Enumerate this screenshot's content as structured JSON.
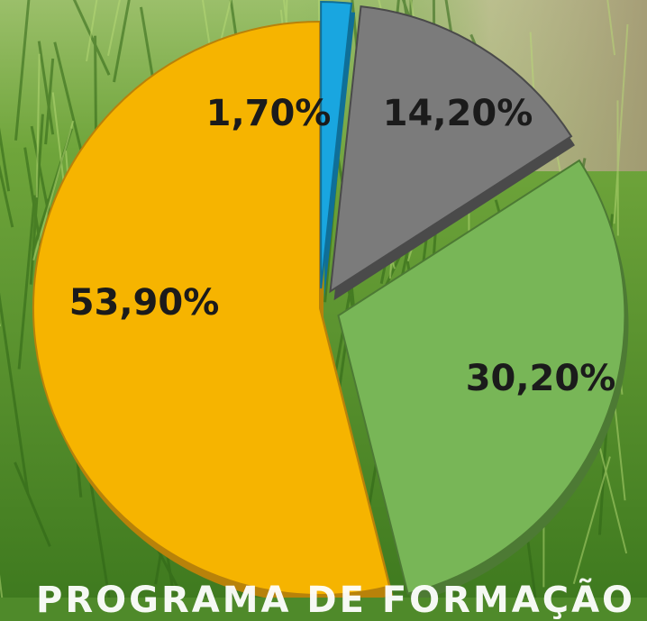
{
  "chart_data": {
    "type": "pie",
    "title": "",
    "slices": [
      {
        "label": "53,90%",
        "value": 53.9,
        "color": "#f6b400",
        "shade": "#b8820a",
        "exploded": false
      },
      {
        "label": "1,70%",
        "value": 1.7,
        "color": "#19a6e0",
        "shade": "#0f6f98",
        "exploded": true
      },
      {
        "label": "14,20%",
        "value": 14.2,
        "color": "#7b7b7b",
        "shade": "#4a4a4a",
        "exploded": true
      },
      {
        "label": "30,20%",
        "value": 30.2,
        "color": "#78b657",
        "shade": "#4d7a34",
        "exploded": true
      }
    ],
    "legend": "none"
  },
  "background": {
    "description_colors": {
      "grass_dark": "#3f7a1f",
      "grass_light": "#8cc04a",
      "ground": "#b9ad8c"
    }
  },
  "caption": "PROGRAMA DE FORMAÇÃO"
}
